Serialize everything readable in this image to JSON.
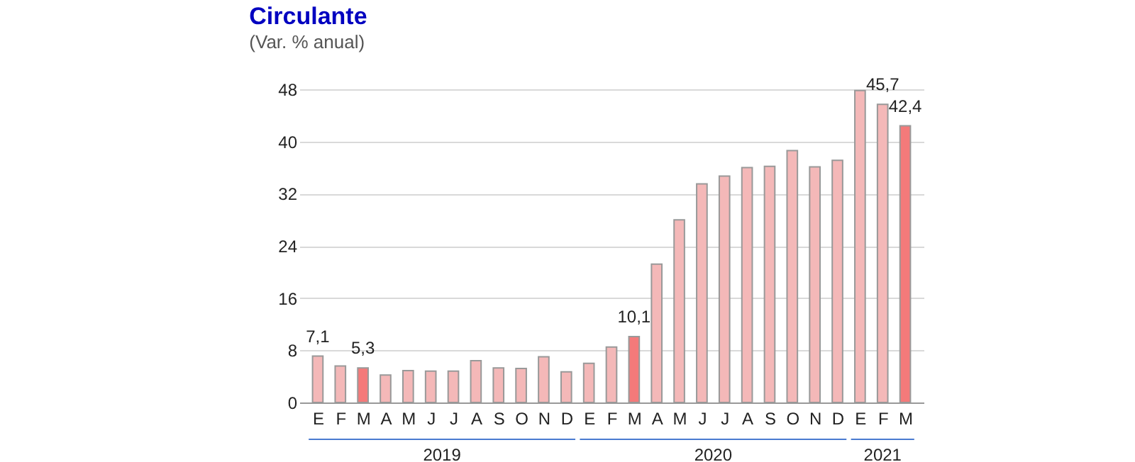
{
  "chart_data": {
    "type": "bar",
    "title": "Circulante",
    "subtitle": "(Var. % anual)",
    "categories": [
      "E",
      "F",
      "M",
      "A",
      "M",
      "J",
      "J",
      "A",
      "S",
      "O",
      "N",
      "D",
      "E",
      "F",
      "M",
      "A",
      "M",
      "J",
      "J",
      "A",
      "S",
      "O",
      "N",
      "D",
      "E",
      "F",
      "M"
    ],
    "values": [
      7.1,
      5.6,
      5.3,
      4.2,
      4.9,
      4.8,
      4.8,
      6.4,
      5.3,
      5.2,
      7.0,
      4.7,
      6.0,
      8.5,
      10.1,
      21.2,
      28.0,
      33.5,
      34.7,
      36.0,
      36.2,
      38.6,
      36.1,
      37.1,
      47.8,
      45.7,
      42.4
    ],
    "colors": [
      "#f4b8b8",
      "#f4b8b8",
      "#f47a7a",
      "#f4b8b8",
      "#f4b8b8",
      "#f4b8b8",
      "#f4b8b8",
      "#f4b8b8",
      "#f4b8b8",
      "#f4b8b8",
      "#f4b8b8",
      "#f4b8b8",
      "#f4b8b8",
      "#f4b8b8",
      "#f47a7a",
      "#f4b8b8",
      "#f4b8b8",
      "#f4b8b8",
      "#f4b8b8",
      "#f4b8b8",
      "#f4b8b8",
      "#f4b8b8",
      "#f4b8b8",
      "#f4b8b8",
      "#f4b8b8",
      "#f4b8b8",
      "#f47a7a"
    ],
    "value_labels": [
      "7,1",
      null,
      "5,3",
      null,
      null,
      null,
      null,
      null,
      null,
      null,
      null,
      null,
      null,
      null,
      "10,1",
      null,
      null,
      null,
      null,
      null,
      null,
      null,
      null,
      null,
      null,
      "45,7",
      "42,4"
    ],
    "annotations": [
      "2019",
      "2020",
      "2021"
    ],
    "ylim": [
      0,
      48
    ],
    "yticks": [
      0,
      8,
      16,
      24,
      32,
      40,
      48
    ],
    "grid": "y"
  }
}
